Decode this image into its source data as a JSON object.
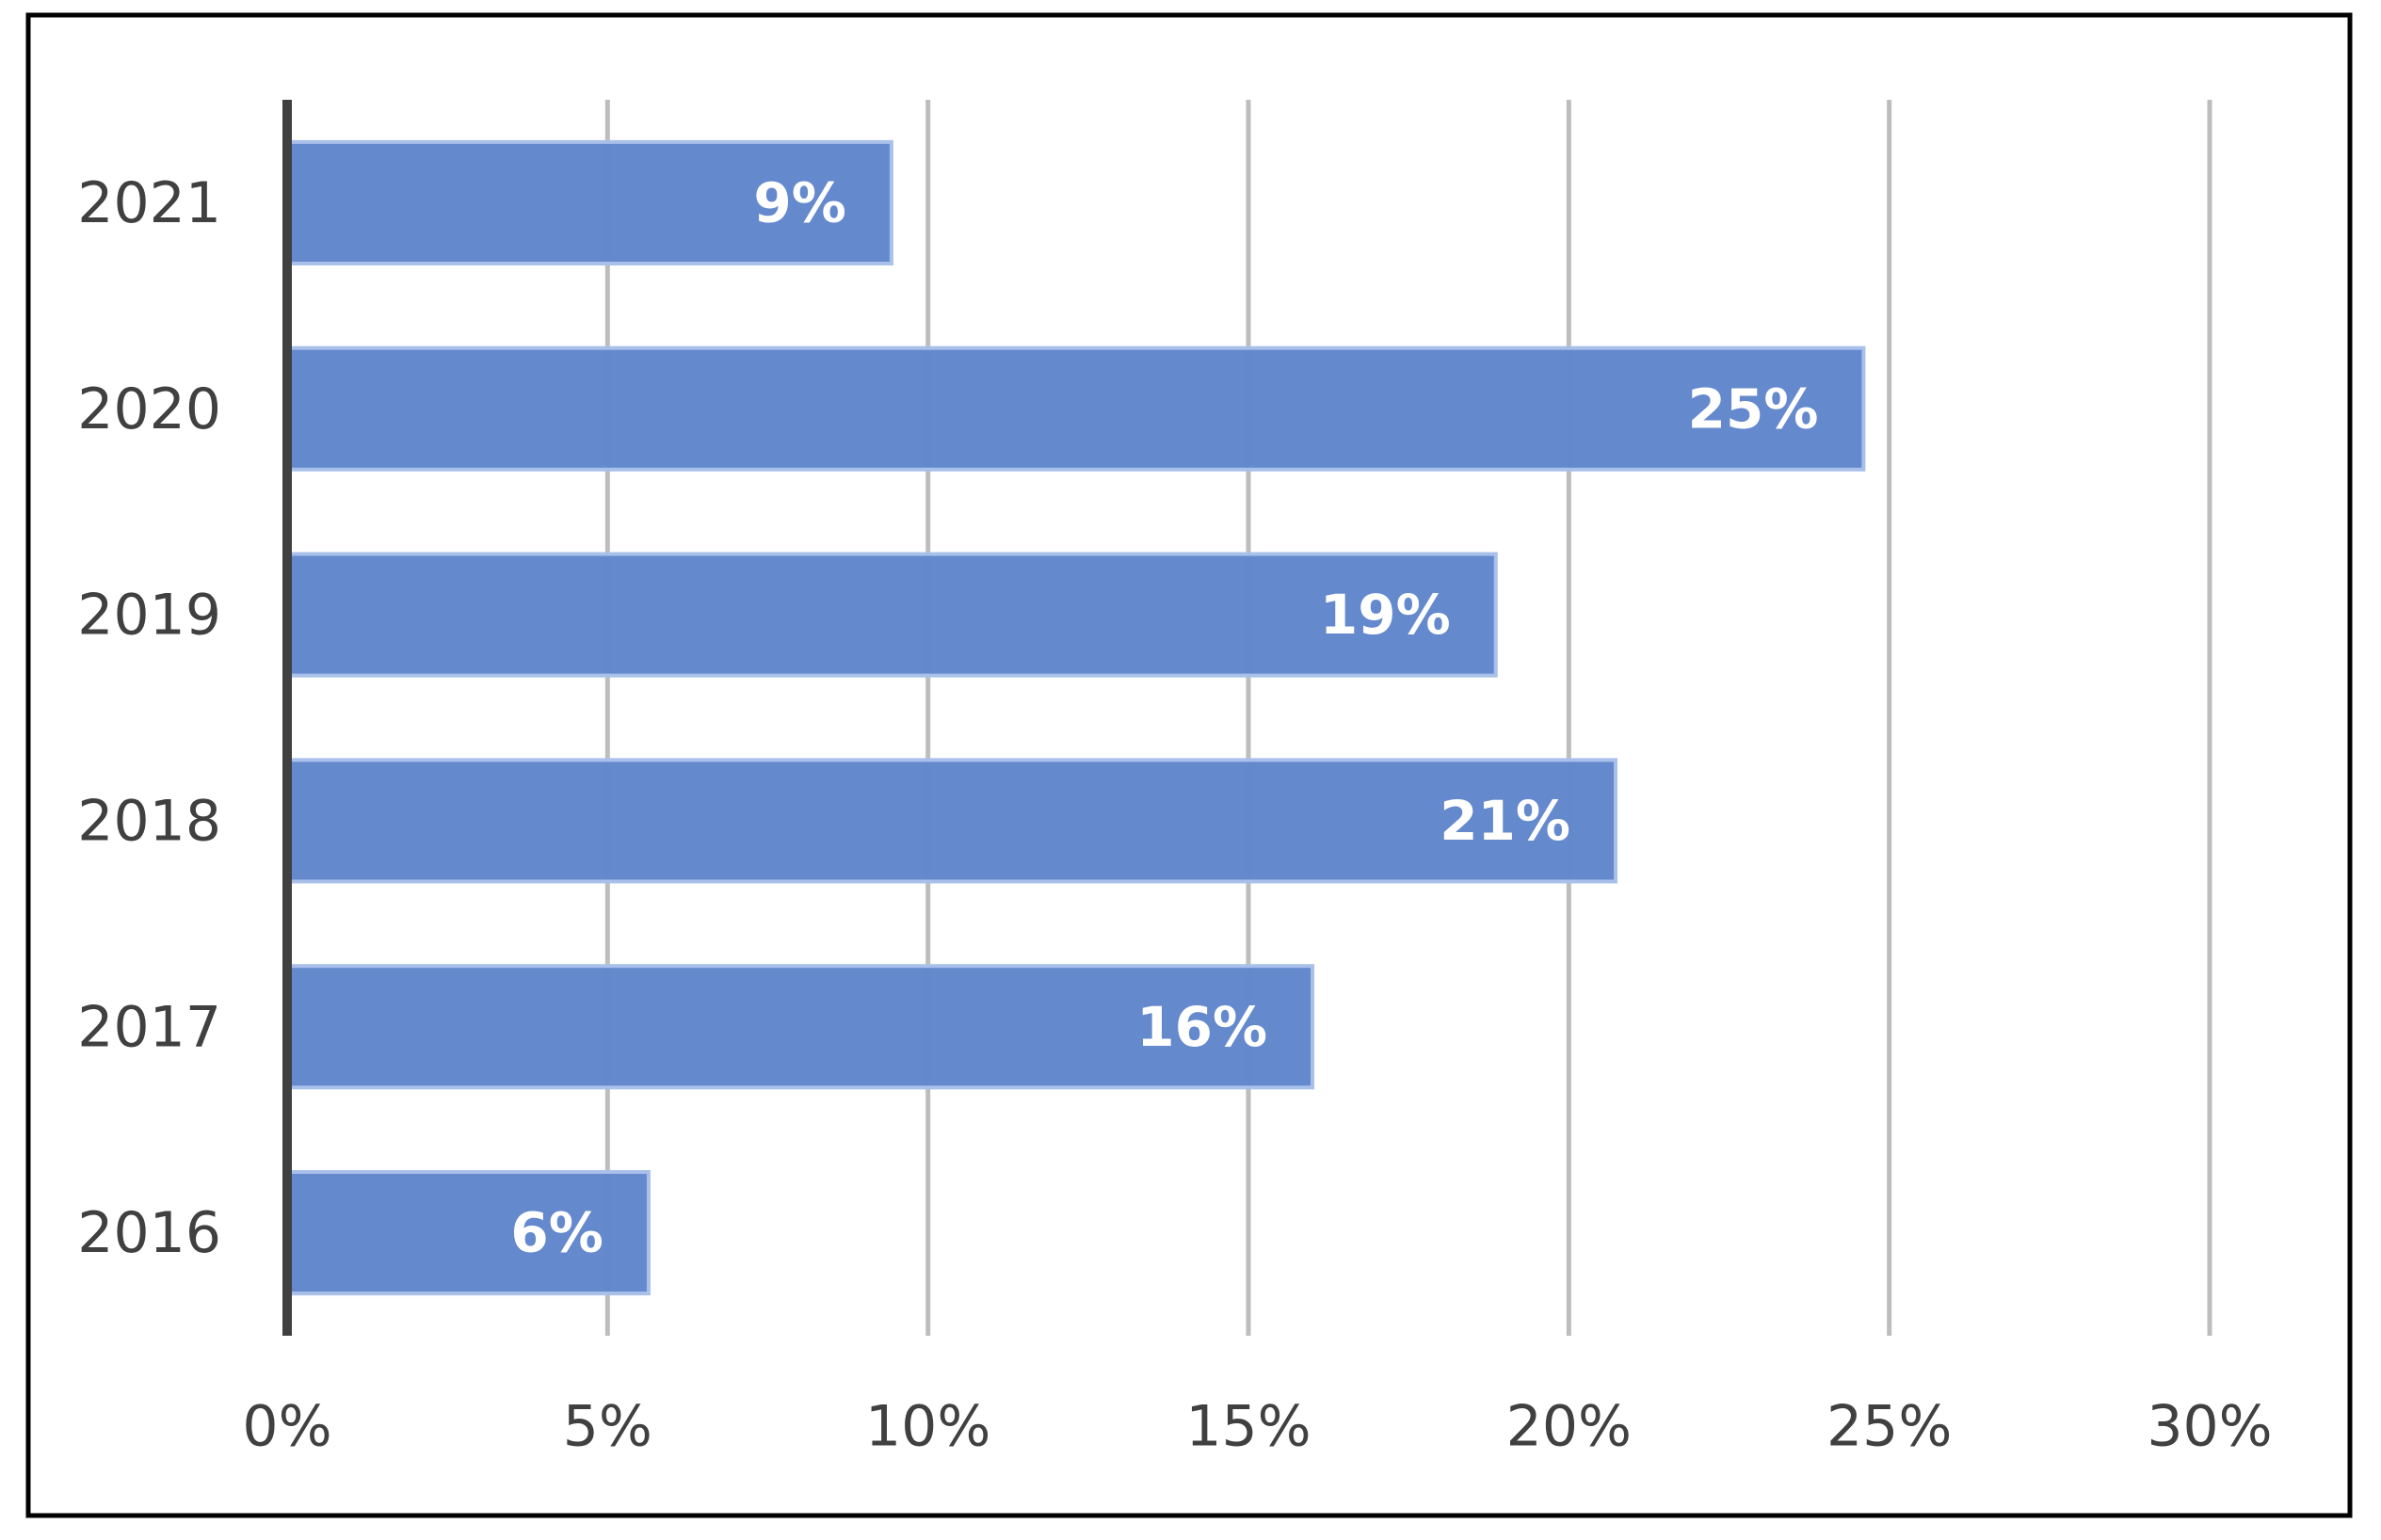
{
  "chart_data": {
    "type": "hbar",
    "categories": [
      "2016",
      "2017",
      "2018",
      "2019",
      "2020",
      "2021"
    ],
    "values": [
      5.64,
      16.0,
      20.73,
      18.86,
      24.6,
      9.43
    ],
    "value_labels": [
      "6%",
      "16%",
      "21%",
      "19%",
      "25%",
      "9%"
    ],
    "color": "#6187cc",
    "xlim": [
      0,
      30
    ],
    "xticks": [
      {
        "value": 0,
        "label": "0%"
      },
      {
        "value": 5,
        "label": "5%"
      },
      {
        "value": 10,
        "label": "10%"
      },
      {
        "value": 15,
        "label": "15%"
      },
      {
        "value": 20,
        "label": "20%"
      },
      {
        "value": 25,
        "label": "25%"
      },
      {
        "value": 30,
        "label": "30%"
      }
    ],
    "grid": true
  }
}
